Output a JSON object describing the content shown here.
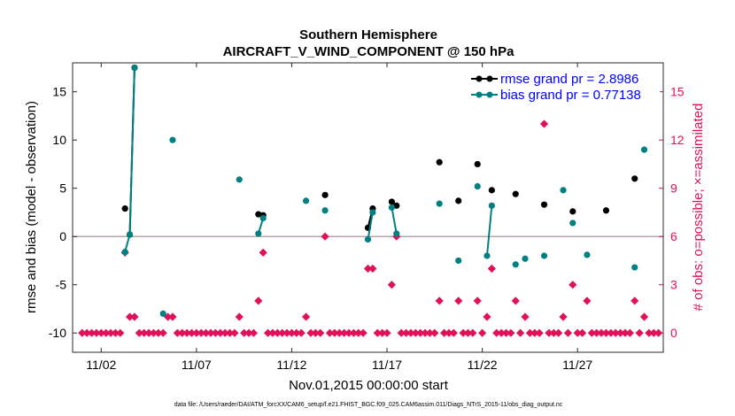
{
  "chart_data": {
    "type": "line",
    "title": "Southern Hemisphere",
    "subtitle": "AIRCRAFT_V_WIND_COMPONENT @ 150 hPa",
    "xlabel": "Nov.01,2015 00:00:00 start",
    "ylabel": "rmse and bias (model - observation)",
    "y2label": "# of obs: o=possible; ×=assimilated",
    "footnote": "data file: /Users/raeder/DAI/ATM_forcXX/CAM6_setup/f.e21.FHIST_BGC.f09_025.CAM6assim.011/Diags_NTrS_2015-11/obs_diag_output.nc",
    "xlim": [
      0.5,
      31.5
    ],
    "ylim": [
      -12,
      18
    ],
    "y2lim": [
      -1.2,
      16.8
    ],
    "x_ticks": [
      2,
      7,
      12,
      17,
      22,
      27
    ],
    "x_tick_labels": [
      "11/02",
      "11/07",
      "11/12",
      "11/17",
      "11/22",
      "11/27"
    ],
    "y_ticks": [
      -10,
      -5,
      0,
      5,
      10,
      15
    ],
    "y_tick_labels": [
      "-10",
      "-5",
      "0",
      "5",
      "10",
      "15"
    ],
    "y2_ticks": [
      0,
      3,
      6,
      9,
      12,
      15
    ],
    "y2_tick_labels": [
      "0",
      "3",
      "6",
      "9",
      "12",
      "15"
    ],
    "zero_line": 0,
    "legend": {
      "position": "top-right",
      "entries": [
        {
          "label": "rmse grand pr = 2.8986",
          "color": "#000000"
        },
        {
          "label": "bias grand pr = 0.77138",
          "color": "#008080"
        }
      ]
    },
    "colors": {
      "rmse": "#000000",
      "bias": "#008080",
      "obs": "#e0105a",
      "zero_line": "#b4a6a6"
    },
    "series": [
      {
        "name": "rmse",
        "segments": [
          [
            [
              3.25,
              2.9
            ]
          ],
          [
            [
              3.5,
              0.2
            ],
            [
              3.75,
              17.5
            ]
          ],
          [
            [
              10.25,
              2.3
            ],
            [
              10.5,
              2.2
            ]
          ],
          [
            [
              13.75,
              4.3
            ]
          ],
          [
            [
              16.0,
              0.9
            ],
            [
              16.25,
              2.9
            ]
          ],
          [
            [
              17.25,
              3.6
            ],
            [
              17.5,
              3.2
            ]
          ],
          [
            [
              19.75,
              7.7
            ]
          ],
          [
            [
              20.75,
              3.7
            ]
          ],
          [
            [
              21.75,
              7.5
            ]
          ],
          [
            [
              22.5,
              4.8
            ]
          ],
          [
            [
              23.75,
              4.4
            ]
          ],
          [
            [
              25.25,
              3.3
            ]
          ],
          [
            [
              26.75,
              2.6
            ]
          ],
          [
            [
              28.5,
              2.7
            ]
          ],
          [
            [
              30.0,
              6.0
            ]
          ]
        ]
      },
      {
        "name": "bias",
        "segments": [
          [
            [
              3.25,
              -1.6
            ],
            [
              3.5,
              0.2
            ],
            [
              3.75,
              17.5
            ]
          ],
          [
            [
              5.25,
              -8.0
            ]
          ],
          [
            [
              5.75,
              10.0
            ]
          ],
          [
            [
              9.25,
              5.9
            ]
          ],
          [
            [
              10.25,
              0.3
            ],
            [
              10.5,
              1.9
            ]
          ],
          [
            [
              12.75,
              3.7
            ]
          ],
          [
            [
              13.75,
              2.7
            ]
          ],
          [
            [
              16.0,
              -0.3
            ],
            [
              16.25,
              2.5
            ]
          ],
          [
            [
              17.25,
              3.0
            ],
            [
              17.5,
              0.3
            ]
          ],
          [
            [
              19.75,
              3.4
            ]
          ],
          [
            [
              20.75,
              -2.5
            ]
          ],
          [
            [
              21.75,
              5.2
            ]
          ],
          [
            [
              22.25,
              -2.0
            ],
            [
              22.5,
              3.2
            ]
          ],
          [
            [
              23.75,
              -2.9
            ]
          ],
          [
            [
              24.25,
              -2.3
            ]
          ],
          [
            [
              25.25,
              -2.0
            ]
          ],
          [
            [
              26.25,
              4.8
            ]
          ],
          [
            [
              26.75,
              1.4
            ]
          ],
          [
            [
              27.5,
              -1.9
            ]
          ],
          [
            [
              30.0,
              -3.2
            ]
          ],
          [
            [
              30.5,
              9.0
            ]
          ]
        ]
      }
    ],
    "obs_counts": [
      [
        1.0,
        0
      ],
      [
        1.25,
        0
      ],
      [
        1.5,
        0
      ],
      [
        1.75,
        0
      ],
      [
        2.0,
        0
      ],
      [
        2.25,
        0
      ],
      [
        2.5,
        0
      ],
      [
        2.75,
        0
      ],
      [
        3.0,
        0
      ],
      [
        3.25,
        5
      ],
      [
        3.5,
        1
      ],
      [
        3.75,
        1
      ],
      [
        4.0,
        0
      ],
      [
        4.25,
        0
      ],
      [
        4.5,
        0
      ],
      [
        4.75,
        0
      ],
      [
        5.0,
        0
      ],
      [
        5.25,
        0
      ],
      [
        5.5,
        1
      ],
      [
        5.75,
        1
      ],
      [
        6.0,
        0
      ],
      [
        6.25,
        0
      ],
      [
        6.5,
        0
      ],
      [
        6.75,
        0
      ],
      [
        7.0,
        0
      ],
      [
        7.25,
        0
      ],
      [
        7.5,
        0
      ],
      [
        7.75,
        0
      ],
      [
        8.0,
        0
      ],
      [
        8.25,
        0
      ],
      [
        8.5,
        0
      ],
      [
        8.75,
        0
      ],
      [
        9.0,
        0
      ],
      [
        9.25,
        1
      ],
      [
        9.5,
        0
      ],
      [
        9.75,
        0
      ],
      [
        10.0,
        0
      ],
      [
        10.25,
        2
      ],
      [
        10.5,
        5
      ],
      [
        10.75,
        0
      ],
      [
        11.0,
        0
      ],
      [
        11.25,
        0
      ],
      [
        11.5,
        0
      ],
      [
        11.75,
        0
      ],
      [
        12.0,
        0
      ],
      [
        12.25,
        0
      ],
      [
        12.5,
        0
      ],
      [
        12.75,
        1
      ],
      [
        13.0,
        0
      ],
      [
        13.25,
        0
      ],
      [
        13.5,
        0
      ],
      [
        13.75,
        6
      ],
      [
        14.0,
        0
      ],
      [
        14.25,
        0
      ],
      [
        14.5,
        0
      ],
      [
        14.75,
        0
      ],
      [
        15.0,
        0
      ],
      [
        15.25,
        0
      ],
      [
        15.5,
        0
      ],
      [
        15.75,
        0
      ],
      [
        16.0,
        4
      ],
      [
        16.25,
        4
      ],
      [
        16.5,
        0
      ],
      [
        16.75,
        0
      ],
      [
        17.0,
        0
      ],
      [
        17.25,
        3
      ],
      [
        17.5,
        6
      ],
      [
        17.75,
        0
      ],
      [
        18.0,
        0
      ],
      [
        18.25,
        0
      ],
      [
        18.5,
        0
      ],
      [
        18.75,
        0
      ],
      [
        19.0,
        0
      ],
      [
        19.25,
        0
      ],
      [
        19.5,
        0
      ],
      [
        19.75,
        2
      ],
      [
        20.0,
        0
      ],
      [
        20.25,
        0
      ],
      [
        20.5,
        0
      ],
      [
        20.75,
        2
      ],
      [
        21.0,
        0
      ],
      [
        21.25,
        0
      ],
      [
        21.5,
        0
      ],
      [
        21.75,
        2
      ],
      [
        22.0,
        0
      ],
      [
        22.25,
        1
      ],
      [
        22.5,
        4
      ],
      [
        22.75,
        0
      ],
      [
        23.0,
        0
      ],
      [
        23.25,
        0
      ],
      [
        23.5,
        0
      ],
      [
        23.75,
        2
      ],
      [
        24.0,
        0
      ],
      [
        24.25,
        1
      ],
      [
        24.5,
        0
      ],
      [
        24.75,
        0
      ],
      [
        25.0,
        0
      ],
      [
        25.25,
        13
      ],
      [
        25.5,
        0
      ],
      [
        25.75,
        0
      ],
      [
        26.0,
        0
      ],
      [
        26.25,
        1
      ],
      [
        26.5,
        0
      ],
      [
        26.75,
        3
      ],
      [
        27.0,
        0
      ],
      [
        27.25,
        0
      ],
      [
        27.5,
        2
      ],
      [
        27.75,
        0
      ],
      [
        28.0,
        0
      ],
      [
        28.25,
        0
      ],
      [
        28.5,
        0
      ],
      [
        28.75,
        0
      ],
      [
        29.0,
        0
      ],
      [
        29.25,
        0
      ],
      [
        29.5,
        0
      ],
      [
        29.75,
        0
      ],
      [
        30.0,
        2
      ],
      [
        30.25,
        0
      ],
      [
        30.5,
        1
      ],
      [
        30.75,
        0
      ],
      [
        31.0,
        0
      ],
      [
        31.25,
        0
      ]
    ]
  }
}
